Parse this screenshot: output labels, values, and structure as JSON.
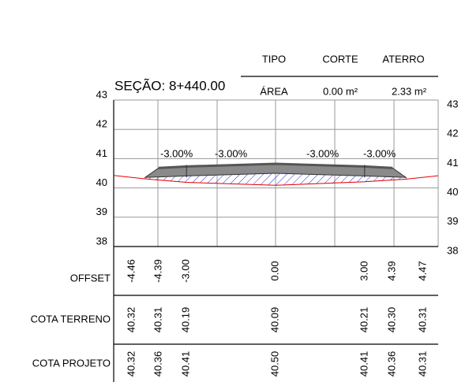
{
  "header": {
    "columns": [
      "TIPO",
      "CORTE",
      "ATERRO"
    ],
    "row_label": "ÁREA",
    "corte": "0.00 m²",
    "aterro": "2.33 m²"
  },
  "section": "SEÇÃO: 8+440.00",
  "elevation_ticks": [
    43,
    42,
    41,
    40,
    39,
    38
  ],
  "slopes": [
    "-3.00%",
    "-3.00%",
    "-3.00%",
    "-3.00%"
  ],
  "rows": [
    {
      "label": "OFFSET",
      "values": [
        "-4.46",
        "-4.39",
        "-3.00",
        "0.00",
        "3.00",
        "4.39",
        "4.47"
      ]
    },
    {
      "label": "COTA TERRENO",
      "values": [
        "40.32",
        "40.31",
        "40.19",
        "40.09",
        "40.21",
        "40.30",
        "40.31"
      ]
    },
    {
      "label": "COTA PROJETO",
      "values": [
        "40.32",
        "40.36",
        "40.41",
        "40.50",
        "40.41",
        "40.36",
        "40.31"
      ]
    }
  ]
}
